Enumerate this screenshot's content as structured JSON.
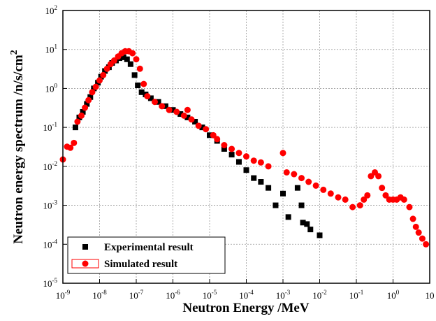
{
  "chart_data": {
    "type": "scatter",
    "x_label": "Neutron Energy /MeV",
    "y_label": {
      "text": "Neutron energy spectrum /n/s/cm",
      "superscript": "2"
    },
    "log_x": true,
    "log_y": true,
    "grid": true,
    "legend": "lower left",
    "xlim": [
      1e-09,
      10
    ],
    "ylim": [
      1e-05,
      100
    ],
    "xticks": [
      {
        "value": 1e-09,
        "label": "10",
        "exponent": "-9"
      },
      {
        "value": 1e-08,
        "label": "10",
        "exponent": "-8"
      },
      {
        "value": 1e-07,
        "label": "10",
        "exponent": "-7"
      },
      {
        "value": 1e-06,
        "label": "10",
        "exponent": "-6"
      },
      {
        "value": 1e-05,
        "label": "10",
        "exponent": "-5"
      },
      {
        "value": 0.0001,
        "label": "10",
        "exponent": "-4"
      },
      {
        "value": 0.001,
        "label": "10",
        "exponent": "-3"
      },
      {
        "value": 0.01,
        "label": "10",
        "exponent": "-2"
      },
      {
        "value": 0.1,
        "label": "10",
        "exponent": "-1"
      },
      {
        "value": 1,
        "label": "10",
        "exponent": "0"
      },
      10
    ],
    "yticks": [
      {
        "value": 1e-05,
        "label": "10",
        "exponent": "-5"
      },
      {
        "value": 0.0001,
        "label": "10",
        "exponent": "-4"
      },
      {
        "value": 0.001,
        "label": "10",
        "exponent": "-3"
      },
      {
        "value": 0.01,
        "label": "10",
        "exponent": "-2"
      },
      {
        "value": 0.1,
        "label": "10",
        "exponent": "-1"
      },
      {
        "value": 1,
        "label": "10",
        "exponent": "0"
      },
      {
        "value": 10,
        "label": "10",
        "exponent": "1"
      },
      {
        "value": 100,
        "label": "10",
        "exponent": "2"
      }
    ],
    "series": [
      {
        "name": "Experimental result",
        "color": "#000000",
        "marker": "square",
        "x": [
          2.2e-09,
          2.8e-09,
          3.5e-09,
          4.5e-09,
          5.6e-09,
          7e-09,
          9e-09,
          1.1e-08,
          1.4e-08,
          1.8e-08,
          2.2e-08,
          2.8e-08,
          3.5e-08,
          4.5e-08,
          5.6e-08,
          7e-08,
          9e-08,
          1.1e-07,
          1.4e-07,
          1.8e-07,
          2.5e-07,
          4e-07,
          6.3e-07,
          1e-06,
          1.6e-06,
          2.5e-06,
          4e-06,
          6.3e-06,
          1e-05,
          1.6e-05,
          2.5e-05,
          4e-05,
          6.3e-05,
          0.0001,
          0.00016,
          0.00025,
          0.0004,
          0.00063,
          0.001,
          0.0014,
          0.0025,
          0.0032,
          0.0035,
          0.0045,
          0.0056,
          0.01
        ],
        "values": [
          0.1,
          0.18,
          0.25,
          0.4,
          0.6,
          1,
          1.4,
          2,
          2.8,
          3.5,
          4.5,
          5.2,
          6,
          6.3,
          5.6,
          4.2,
          2.2,
          1.2,
          0.8,
          0.7,
          0.56,
          0.45,
          0.35,
          0.28,
          0.22,
          0.18,
          0.14,
          0.1,
          0.063,
          0.045,
          0.028,
          0.02,
          0.013,
          0.008,
          0.005,
          0.004,
          0.0028,
          0.001,
          0.002,
          0.0005,
          0.0028,
          0.001,
          0.00036,
          0.00033,
          0.00024,
          0.00017
        ]
      },
      {
        "name": "Simulated result",
        "color": "#ff0000",
        "marker": "circle",
        "x": [
          1e-09,
          1.3e-09,
          1.6e-09,
          2e-09,
          2.5e-09,
          3.2e-09,
          4e-09,
          5e-09,
          6.3e-09,
          7.9e-09,
          1e-08,
          1.26e-08,
          1.6e-08,
          2e-08,
          2.5e-08,
          3.2e-08,
          4e-08,
          5e-08,
          6.3e-08,
          7.9e-08,
          1e-07,
          1.26e-07,
          1.6e-07,
          2e-07,
          3.2e-07,
          5e-07,
          7.9e-07,
          1.26e-06,
          2e-06,
          2.5e-06,
          3.2e-06,
          5e-06,
          7.9e-06,
          1.26e-05,
          1.6e-05,
          2.5e-05,
          4e-05,
          6.3e-05,
          0.0001,
          0.00016,
          0.00025,
          0.0004,
          0.001,
          0.00126,
          0.002,
          0.0032,
          0.005,
          0.0079,
          0.0126,
          0.02,
          0.032,
          0.05,
          0.079,
          0.126,
          0.16,
          0.2,
          0.25,
          0.32,
          0.4,
          0.5,
          0.63,
          0.79,
          1,
          1.26,
          1.6,
          2,
          2.8,
          3.5,
          4.2,
          5,
          6.3,
          7.9
        ],
        "values": [
          0.015,
          0.032,
          0.03,
          0.04,
          0.14,
          0.2,
          0.32,
          0.5,
          0.8,
          1.1,
          1.6,
          2.2,
          3.2,
          4.2,
          5.2,
          6.6,
          8,
          9,
          9,
          8,
          5.6,
          3.2,
          1.3,
          0.63,
          0.45,
          0.35,
          0.28,
          0.25,
          0.2,
          0.28,
          0.16,
          0.11,
          0.09,
          0.063,
          0.05,
          0.035,
          0.028,
          0.022,
          0.018,
          0.014,
          0.0126,
          0.01,
          0.022,
          0.007,
          0.0063,
          0.005,
          0.004,
          0.0032,
          0.0025,
          0.002,
          0.0016,
          0.0014,
          0.0009,
          0.001,
          0.0014,
          0.0018,
          0.0056,
          0.007,
          0.0056,
          0.0028,
          0.0018,
          0.0014,
          0.0014,
          0.0014,
          0.0016,
          0.0014,
          0.0009,
          0.00045,
          0.00028,
          0.0002,
          0.00014,
          0.0001
        ]
      }
    ]
  }
}
